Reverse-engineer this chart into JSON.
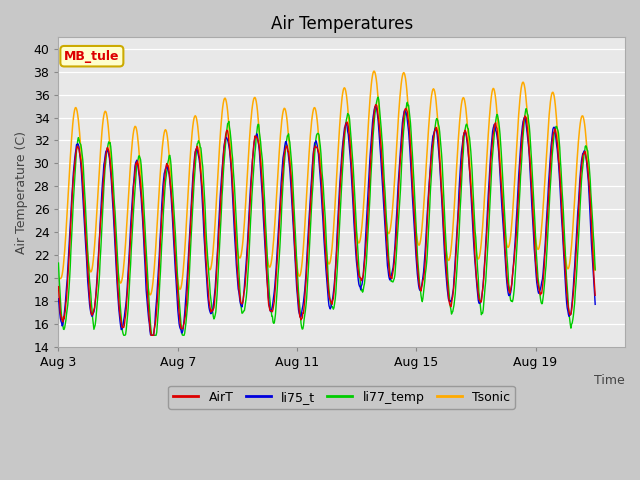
{
  "title": "Air Temperatures",
  "ylabel": "Air Temperature (C)",
  "xlabel": "Time",
  "ylim": [
    14,
    41
  ],
  "yticks": [
    14,
    16,
    18,
    20,
    22,
    24,
    26,
    28,
    30,
    32,
    34,
    36,
    38,
    40
  ],
  "fig_bg_color": "#c8c8c8",
  "plot_bg_color": "#e8e8e8",
  "line_colors": {
    "AirT": "#dd0000",
    "li75_t": "#0000dd",
    "li77_temp": "#00cc00",
    "Tsonic": "#ffaa00"
  },
  "annotation_text": "MB_tule",
  "annotation_bg": "#ffffcc",
  "annotation_border": "#ccaa00",
  "x_tick_labels": [
    "Aug 3",
    "Aug 7",
    "Aug 11",
    "Aug 15",
    "Aug 19"
  ],
  "title_fontsize": 12,
  "axis_fontsize": 9,
  "legend_fontsize": 9,
  "n_days": 18,
  "cycles_per_day": 1,
  "tsonic_extra": 3.5,
  "base_mean": 23.0,
  "base_amp": 7.5
}
